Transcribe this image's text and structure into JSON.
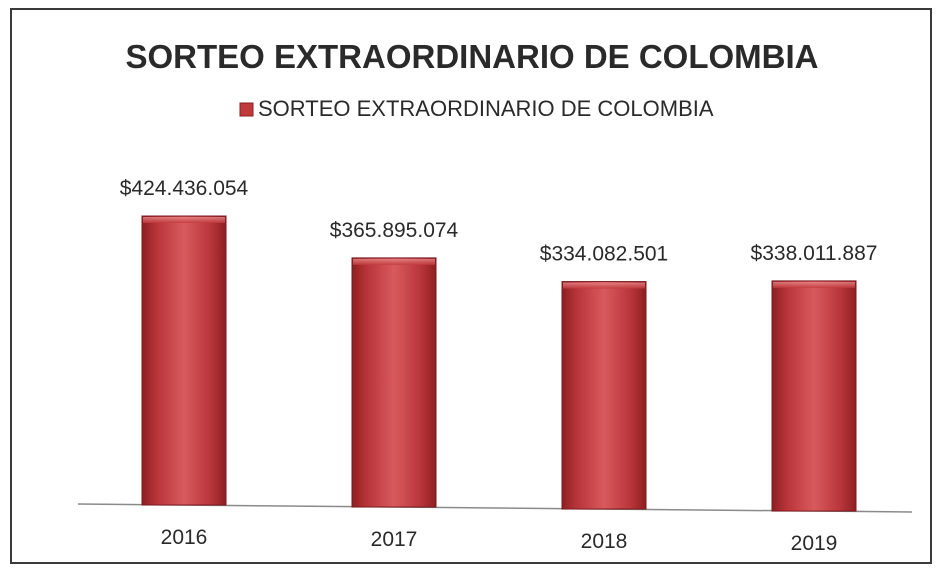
{
  "chart_data": {
    "type": "bar",
    "title": "SORTEO EXTRAORDINARIO DE COLOMBIA",
    "legend": {
      "entries": [
        "SORTEO EXTRAORDINARIO DE COLOMBIA"
      ],
      "placement": "top"
    },
    "categories": [
      "2016",
      "2017",
      "2018",
      "2019"
    ],
    "series": [
      {
        "name": "SORTEO EXTRAORDINARIO DE COLOMBIA",
        "values": [
          424436054,
          365895074,
          334082501,
          338011887
        ],
        "labels": [
          "$424.436.054",
          "$365.895.074",
          "$334.082.501",
          "$338.011.887"
        ],
        "color": "#c0393b"
      }
    ],
    "xlabel": "",
    "ylabel": "",
    "grid": false,
    "ylim": [
      0,
      424436054
    ]
  }
}
